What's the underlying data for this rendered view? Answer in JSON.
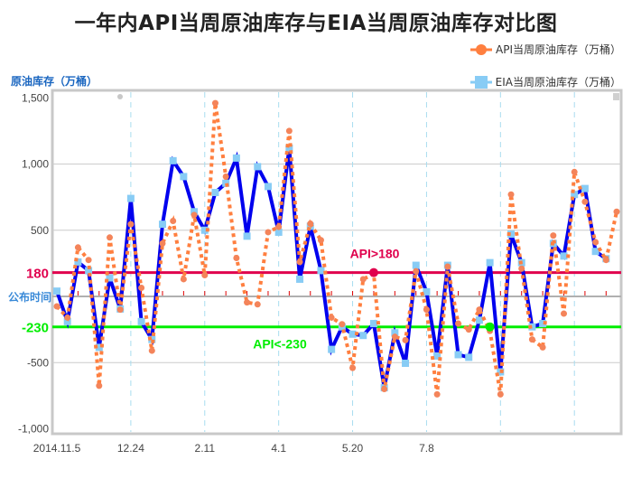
{
  "chart_data": {
    "type": "line",
    "title": "一年内API当周原油库存与EIA当周原油库存对比图",
    "ylabel": "原油库存（万桶）",
    "xlabel": "公布时间",
    "ylim": [
      -1000,
      1500
    ],
    "yticks": [
      {
        "value": 1500,
        "label": "1,500"
      },
      {
        "value": 1000,
        "label": "1,000"
      },
      {
        "value": 500,
        "label": "500"
      },
      {
        "value": -500,
        "label": "-500"
      },
      {
        "value": -1000,
        "label": "-1,000"
      }
    ],
    "xticks": [
      {
        "index": 0,
        "label": "2014.11.5"
      },
      {
        "index": 7,
        "label": "12.24"
      },
      {
        "index": 14,
        "label": "2.11"
      },
      {
        "index": 21,
        "label": "4.1"
      },
      {
        "index": 28,
        "label": "5.20"
      },
      {
        "index": 35,
        "label": "7.8"
      }
    ],
    "x_grid_every": 7,
    "grid": true,
    "legend_placement": "top-right",
    "series": [
      {
        "name": "API当周原油库存（万桶）",
        "color": "#ff7f3f",
        "style": "dotted-circle",
        "values": [
          -75,
          -160,
          370,
          275,
          -675,
          445,
          -100,
          545,
          65,
          -410,
          400,
          570,
          130,
          615,
          160,
          1460,
          905,
          290,
          -45,
          -60,
          485,
          525,
          1250,
          260,
          550,
          425,
          -160,
          -210,
          -540,
          130,
          170,
          -700,
          -305,
          -330,
          190,
          -100,
          -740,
          225,
          -205,
          -250,
          -100,
          -260,
          -740,
          770,
          210,
          -325,
          -385,
          460,
          -130,
          940,
          715,
          410,
          275,
          640
        ]
      },
      {
        "name": "EIA当周原油库存（万桶）",
        "color": "#0000ee",
        "marker_color": "#88ccf5",
        "style": "solid-square",
        "values": [
          40,
          -190,
          260,
          195,
          -385,
          140,
          -95,
          740,
          -190,
          -325,
          545,
          1025,
          905,
          640,
          500,
          785,
          855,
          1045,
          455,
          980,
          830,
          485,
          1120,
          130,
          530,
          195,
          -400,
          -230,
          -285,
          -295,
          -205,
          -690,
          -275,
          -505,
          235,
          35,
          -450,
          235,
          -440,
          -460,
          -180,
          255,
          -570,
          470,
          255,
          -230,
          -205,
          400,
          305,
          770,
          815,
          340,
          285,
          null
        ]
      }
    ],
    "reference_lines": [
      {
        "value": 180,
        "label": "180",
        "annotation": "API>180",
        "color": "#e0004d",
        "highlight_index": 30
      },
      {
        "value": -230,
        "label": "-230",
        "annotation": "API<-230",
        "color": "#00ee00",
        "highlight_index": 41
      }
    ]
  }
}
